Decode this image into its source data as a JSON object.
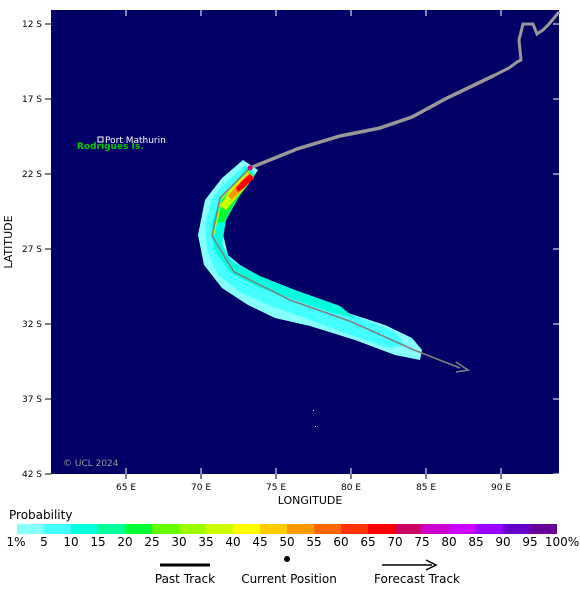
{
  "map": {
    "copyright": "© UCL 2024",
    "place_label": "Port Mathurin",
    "island_label": "Rodrigues Is.",
    "xlabel": "LONGITUDE",
    "ylabel": "LATITUDE",
    "lat_ticks": [
      "12 S",
      "17 S",
      "22 S",
      "27 S",
      "32 S",
      "37 S",
      "42 S"
    ],
    "lon_ticks": [
      "65 E",
      "70 E",
      "75 E",
      "80 E",
      "85 E",
      "90 E"
    ],
    "colors": {
      "ocean": "#000066",
      "past_track": "#999999",
      "forecast_track": "#808080",
      "island_label": "#00cc00"
    }
  },
  "legend": {
    "title": "Probability",
    "labels": [
      "1%",
      "5",
      "10",
      "15",
      "20",
      "25",
      "30",
      "35",
      "40",
      "45",
      "50",
      "55",
      "60",
      "65",
      "70",
      "75",
      "80",
      "85",
      "90",
      "95",
      "100%"
    ],
    "colors": [
      "#88ffff",
      "#44ffff",
      "#00ffdd",
      "#00ff99",
      "#00ff33",
      "#66ff00",
      "#99ff00",
      "#ccff00",
      "#ffff00",
      "#ffcc00",
      "#ff9900",
      "#ff6600",
      "#ff3300",
      "#ff0000",
      "#cc0066",
      "#cc00cc",
      "#cc00ff",
      "#9900ff",
      "#6600cc",
      "#660099"
    ]
  },
  "keys": {
    "past_track": "Past Track",
    "current_position": "Current Position",
    "forecast_track": "Forecast Track"
  }
}
